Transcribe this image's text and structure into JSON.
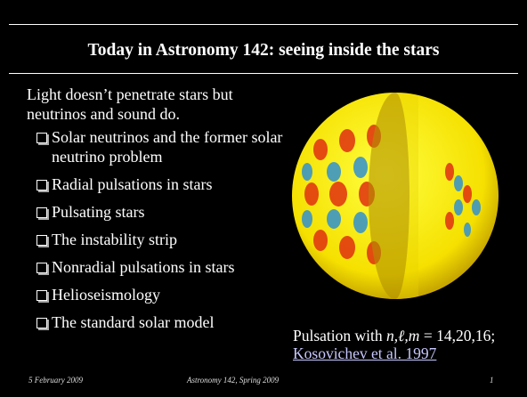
{
  "header": {
    "title": "Today in Astronomy 142: seeing inside the stars"
  },
  "intro": "Light doesn’t penetrate stars but neutrinos and sound do.",
  "bullets": [
    "Solar neutrinos and the former solar neutrino problem",
    "Radial pulsations in stars",
    "Pulsating stars",
    "The instability strip",
    "Nonradial pulsations in stars",
    "Helioseismology",
    "The standard solar model"
  ],
  "caption": {
    "prefix": "Pulsation with",
    "variables": "n,ℓ,m",
    "values": "= 14,20,16;",
    "link": "Kosovichev et al. 1997"
  },
  "footer": {
    "date": "5 February 2009",
    "course": "Astronomy 142, Spring 2009",
    "page": "1"
  }
}
